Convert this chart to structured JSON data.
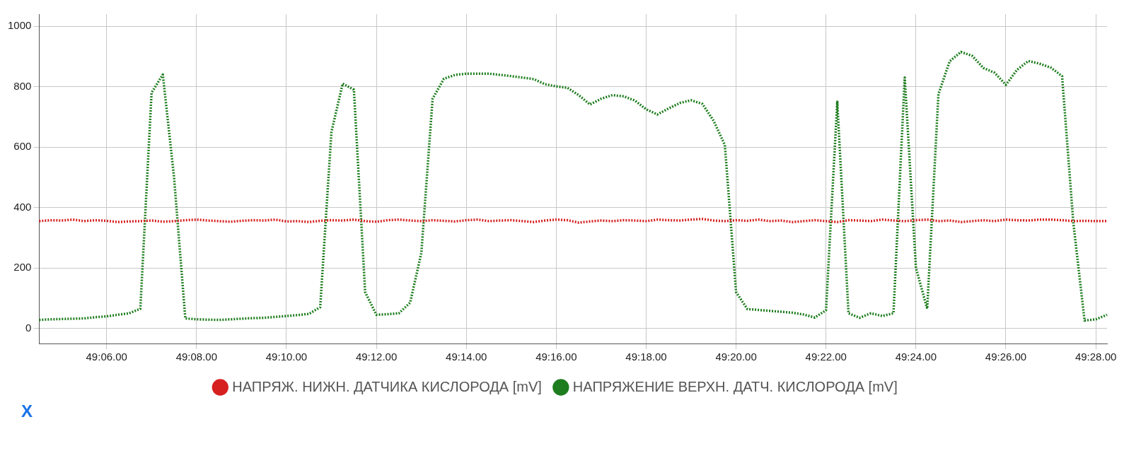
{
  "chart_data": {
    "type": "line",
    "categories": [
      null,
      null,
      null,
      null,
      null,
      null,
      "49:06.00",
      null,
      null,
      null,
      null,
      null,
      null,
      null,
      "49:08.00",
      null,
      null,
      null,
      null,
      null,
      null,
      null,
      "49:10.00",
      null,
      null,
      null,
      null,
      null,
      null,
      null,
      "49:12.00",
      null,
      null,
      null,
      null,
      null,
      null,
      null,
      "49:14.00",
      null,
      null,
      null,
      null,
      null,
      null,
      null,
      "49:16.00",
      null,
      null,
      null,
      null,
      null,
      null,
      null,
      "49:18.00",
      null,
      null,
      null,
      null,
      null,
      null,
      null,
      "49:20.00",
      null,
      null,
      null,
      null,
      null,
      null,
      null,
      "49:22.00",
      null,
      null,
      null,
      null,
      null,
      null,
      null,
      "49:24.00",
      null,
      null,
      null,
      null,
      null,
      null,
      null,
      "49:26.00",
      null,
      null,
      null,
      null,
      null,
      null,
      null,
      "49:28.00",
      null
    ],
    "ylim": [
      -50,
      1040
    ],
    "yticks": [
      0,
      200,
      400,
      600,
      800,
      1000
    ],
    "grid": true,
    "legend": "bottom",
    "marker": "none",
    "line_style": "dotted",
    "annotations": [
      "X"
    ],
    "series": [
      {
        "name": "НАПРЯЖ. НИЖН. ДАТЧИКА КИСЛОРОДА [mV]",
        "color": "#d62020",
        "values": [
          355,
          358,
          357,
          360,
          355,
          358,
          356,
          352,
          354,
          355,
          357,
          353,
          355,
          358,
          360,
          357,
          355,
          353,
          356,
          358,
          357,
          360,
          354,
          355,
          352,
          356,
          358,
          357,
          360,
          355,
          353,
          358,
          360,
          357,
          355,
          358,
          356,
          354,
          358,
          360,
          355,
          357,
          358,
          355,
          352,
          357,
          360,
          358,
          350,
          354,
          357,
          355,
          358,
          357,
          355,
          360,
          358,
          357,
          360,
          362,
          357,
          355,
          358,
          356,
          360,
          355,
          357,
          352,
          355,
          358,
          355,
          352,
          358,
          357,
          355,
          360,
          357,
          355,
          358,
          360,
          355,
          357,
          352,
          355,
          358,
          355,
          360,
          358,
          357,
          360,
          360,
          358,
          355,
          356,
          355,
          355
        ]
      },
      {
        "name": "НАПРЯЖЕНИЕ ВЕРХН. ДАТЧ. КИСЛОРОДА [mV]",
        "color": "#1e7d1e",
        "values": [
          28,
          30,
          31,
          32,
          33,
          37,
          40,
          45,
          50,
          65,
          780,
          840,
          500,
          33,
          30,
          29,
          28,
          30,
          32,
          34,
          35,
          38,
          41,
          44,
          48,
          70,
          650,
          810,
          790,
          120,
          45,
          47,
          50,
          85,
          250,
          760,
          826,
          839,
          843,
          843,
          843,
          839,
          835,
          830,
          825,
          808,
          801,
          796,
          772,
          741,
          760,
          772,
          768,
          754,
          725,
          708,
          728,
          746,
          755,
          743,
          687,
          607,
          120,
          64,
          61,
          58,
          55,
          52,
          46,
          36,
          60,
          750,
          50,
          35,
          50,
          41,
          50,
          830,
          200,
          65,
          775,
          884,
          915,
          902,
          862,
          846,
          806,
          856,
          885,
          876,
          863,
          835,
          350,
          26,
          30,
          45
        ]
      }
    ]
  }
}
